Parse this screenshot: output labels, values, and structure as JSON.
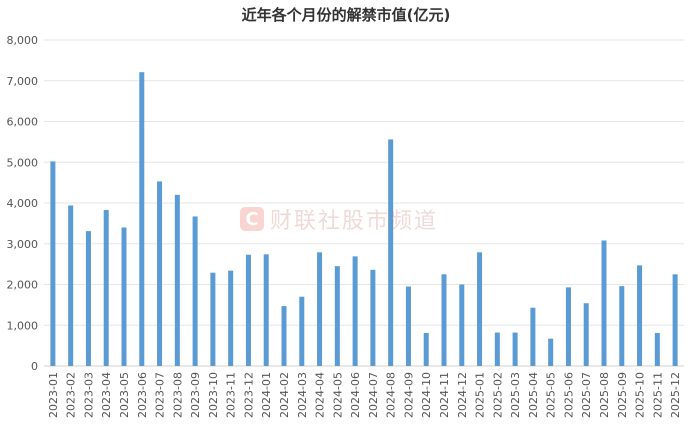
{
  "chart_data": {
    "type": "bar",
    "title": "近年各个月份的解禁市值(亿元)",
    "xlabel": "",
    "ylabel": "",
    "ylim": [
      0,
      8000
    ],
    "yticks": [
      0,
      1000,
      2000,
      3000,
      4000,
      5000,
      6000,
      7000,
      8000
    ],
    "ytick_labels": [
      "0",
      "1,000",
      "2,000",
      "3,000",
      "4,000",
      "5,000",
      "6,000",
      "7,000",
      "8,000"
    ],
    "grid": true,
    "categories": [
      "2023-01",
      "2023-02",
      "2023-03",
      "2023-04",
      "2023-05",
      "2023-06",
      "2023-07",
      "2023-08",
      "2023-09",
      "2023-10",
      "2023-11",
      "2023-12",
      "2024-01",
      "2024-02",
      "2024-03",
      "2024-04",
      "2024-05",
      "2024-06",
      "2024-07",
      "2024-08",
      "2024-09",
      "2024-10",
      "2024-11",
      "2024-12",
      "2025-01",
      "2025-02",
      "2025-03",
      "2025-04",
      "2025-05",
      "2025-06",
      "2025-07",
      "2025-08",
      "2025-09",
      "2025-10",
      "2025-11",
      "2025-12"
    ],
    "values": [
      5020,
      3940,
      3310,
      3830,
      3400,
      7210,
      4530,
      4200,
      3670,
      2290,
      2340,
      2730,
      2740,
      1470,
      1700,
      2790,
      2450,
      2690,
      2360,
      5560,
      1950,
      810,
      2250,
      2000,
      2790,
      820,
      820,
      1430,
      670,
      1930,
      1540,
      3080,
      1960,
      2470,
      810,
      2250
    ],
    "bar_color": "#5b9bd5"
  },
  "watermark": {
    "logo": "C",
    "text": "财联社股市频道"
  }
}
